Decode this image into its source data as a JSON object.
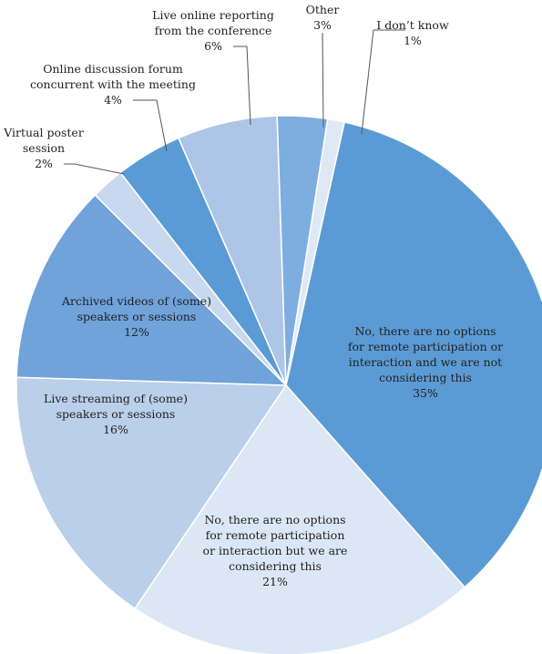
{
  "chart_data": {
    "type": "pie",
    "title": "",
    "slices": [
      {
        "lines": [
          "No, there are no options",
          "for remote participation or",
          "interaction and we are not",
          "considering this"
        ],
        "pct_label": "35%",
        "value": 35,
        "color": "#5b9bd5"
      },
      {
        "lines": [
          "No, there are no options",
          "for remote participation",
          "or interaction but we are",
          "considering this"
        ],
        "pct_label": "21%",
        "value": 21,
        "color": "#dce7f5"
      },
      {
        "lines": [
          "Live streaming of (some)",
          "speakers or sessions"
        ],
        "pct_label": "16%",
        "value": 16,
        "color": "#b9cfea"
      },
      {
        "lines": [
          "Archived videos of (some)",
          "speakers or sessions"
        ],
        "pct_label": "12%",
        "value": 12,
        "color": "#6fa3da"
      },
      {
        "lines": [
          "Virtual poster",
          "session"
        ],
        "pct_label": "2%",
        "value": 2,
        "color": "#c8d9ef"
      },
      {
        "lines": [
          "Online discussion forum",
          "concurrent with the meeting"
        ],
        "pct_label": "4%",
        "value": 4,
        "color": "#5b9bd5"
      },
      {
        "lines": [
          "Live online reporting",
          "from the conference"
        ],
        "pct_label": "6%",
        "value": 6,
        "color": "#adc6e8"
      },
      {
        "lines": [
          "Other"
        ],
        "pct_label": "3%",
        "value": 3,
        "color": "#7eaee0"
      },
      {
        "lines": [
          "I don’t know"
        ],
        "pct_label": "1%",
        "value": 1,
        "color": "#dfe9f6"
      }
    ],
    "legend": "none"
  }
}
